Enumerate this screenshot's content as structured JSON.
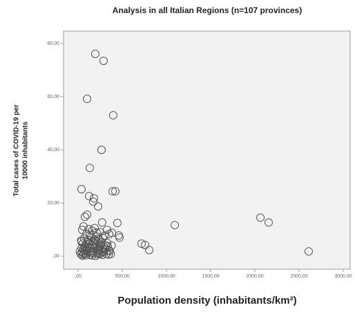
{
  "chart_data": {
    "type": "scatter",
    "title": "Analysis in all Italian Regions (n=107 provinces)",
    "xlabel": "Population density (inhabitants/km²)",
    "ylabel": [
      "Total cases of COVID-19 per",
      "10000 inhabitants"
    ],
    "xlim": [
      -164,
      3078
    ],
    "ylim": [
      -4.9,
      84.7
    ],
    "xticks": [
      {
        "value": 0,
        "label": ",00"
      },
      {
        "value": 500,
        "label": "500,00"
      },
      {
        "value": 1000,
        "label": "1000,00"
      },
      {
        "value": 1500,
        "label": "1500,00"
      },
      {
        "value": 2000,
        "label": "2000,00"
      },
      {
        "value": 2500,
        "label": "2500,00"
      },
      {
        "value": 3000,
        "label": "3000,00"
      }
    ],
    "yticks": [
      {
        "value": 0,
        "label": ",00"
      },
      {
        "value": 20,
        "label": "20,00"
      },
      {
        "value": 40,
        "label": "40,00"
      },
      {
        "value": 60,
        "label": "60,00"
      },
      {
        "value": 80,
        "label": "80,00"
      }
    ],
    "color": "#555555",
    "x": [
      195,
      289,
      102,
      398,
      266,
      133,
      39,
      391,
      422,
      125,
      180,
      172,
      227,
      102,
      78,
      445,
      1094,
      2063,
      2156,
      2609,
      461,
      469,
      719,
      758,
      805,
      352,
      62,
      47,
      273,
      188,
      328,
      383,
      250,
      133,
      39,
      30,
      45,
      60,
      75,
      90,
      105,
      120,
      135,
      150,
      165,
      180,
      195,
      210,
      225,
      240,
      255,
      270,
      285,
      300,
      315,
      330,
      345,
      360,
      40,
      55,
      70,
      85,
      100,
      115,
      130,
      145,
      160,
      175,
      190,
      205,
      220,
      235,
      250,
      265,
      280,
      50,
      65,
      80,
      95,
      110,
      125,
      140,
      155,
      170,
      185,
      200,
      215,
      230,
      245,
      260,
      275,
      290,
      305,
      320,
      335,
      350,
      370,
      380,
      20,
      35,
      95,
      160,
      210,
      300,
      120,
      60,
      240
    ],
    "y": [
      76.1,
      73.5,
      59.2,
      53,
      40,
      33.2,
      25.2,
      24.4,
      24.4,
      22.6,
      21.8,
      20.5,
      18.7,
      15.6,
      14.8,
      12.5,
      11.7,
      14.5,
      12.7,
      1.8,
      7.8,
      7,
      4.7,
      4.2,
      2.3,
      8.3,
      11.2,
      9.9,
      12.7,
      10.6,
      9.9,
      8.8,
      9.1,
      8.1,
      5.5,
      0.8,
      1.5,
      2.4,
      3.3,
      4.5,
      5.2,
      6.1,
      0.5,
      1.2,
      2,
      2.9,
      3.8,
      4.6,
      5.5,
      6.3,
      0.9,
      1.7,
      2.6,
      3.4,
      4.1,
      5,
      0.6,
      1.9,
      3,
      4.8,
      6.7,
      1,
      2.2,
      3.6,
      4.9,
      7.2,
      0.3,
      1.4,
      5.8,
      7.5,
      0.7,
      2.5,
      3.9,
      5.1,
      6.9,
      0.2,
      1.1,
      2,
      0.4,
      1.6,
      2.8,
      3.1,
      4.3,
      5.6,
      6.4,
      0.1,
      1.3,
      2.1,
      3.2,
      4.4,
      0.5,
      1.8,
      2.7,
      0.9,
      3.7,
      2.3,
      0.8,
      4,
      1.8,
      5.9,
      8.4,
      9.6,
      8.9,
      7.8,
      10.2,
      0.6,
      1
    ]
  }
}
